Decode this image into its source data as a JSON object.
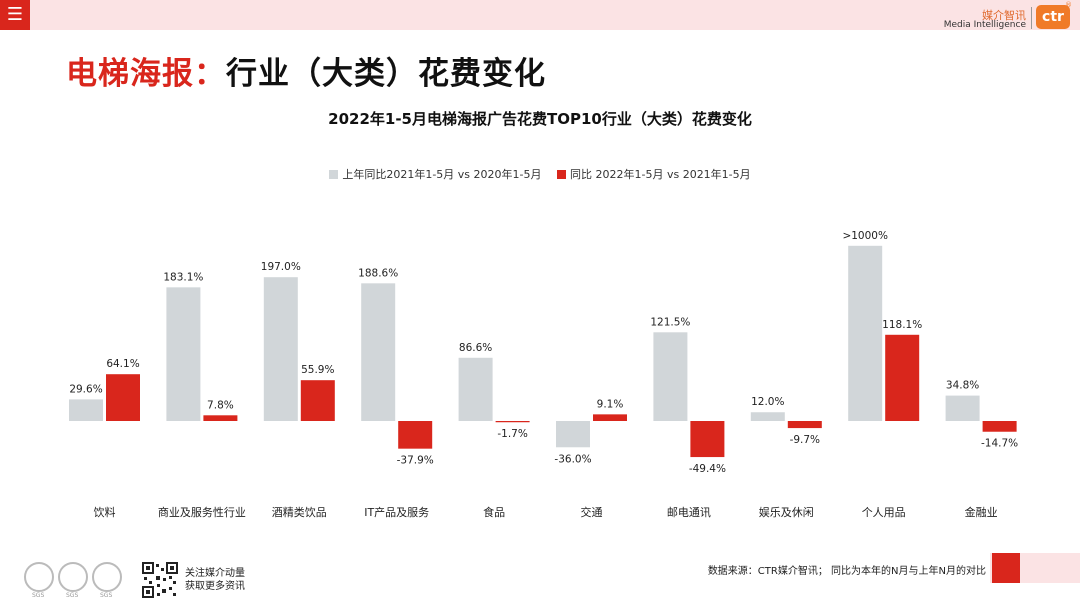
{
  "header": {
    "menu_icon": "hamburger-menu-icon",
    "brand_cn": "媒介智讯",
    "brand_en": "Media Intelligence",
    "brand_logo": "ctr",
    "brand_reg": "®"
  },
  "title": {
    "part_red": "电梯海报：",
    "part_black": "行业（大类）花费变化"
  },
  "colors": {
    "accent_red": "#d9261c",
    "bar_grey": "#d1d6d9",
    "bar_red": "#d9261c",
    "header_bg": "#fbe3e4"
  },
  "chart_data": {
    "type": "bar",
    "title": "2022年1-5月电梯海报广告花费TOP10行业（大类）花费变化",
    "categories": [
      "饮料",
      "商业及服务性行业",
      "酒精类饮品",
      "IT产品及服务",
      "食品",
      "交通",
      "邮电通讯",
      "娱乐及休闲",
      "个人用品",
      "金融业"
    ],
    "series": [
      {
        "name": "上年同比2021年1-5月 vs 2020年1-5月",
        "color": "#d1d6d9",
        "values": [
          29.6,
          183.1,
          197.0,
          188.6,
          86.6,
          -36.0,
          121.5,
          12.0,
          1000,
          34.8
        ],
        "labels": [
          "29.6%",
          "183.1%",
          "197.0%",
          "188.6%",
          "86.6%",
          "-36.0%",
          "121.5%",
          "12.0%",
          ">1000%",
          "34.8%"
        ]
      },
      {
        "name": "同比 2022年1-5月  vs 2021年1-5月",
        "color": "#d9261c",
        "values": [
          64.1,
          7.8,
          55.9,
          -37.9,
          -1.7,
          9.1,
          -49.4,
          -9.7,
          118.1,
          -14.7
        ],
        "labels": [
          "64.1%",
          "7.8%",
          "55.9%",
          "-37.9%",
          "-1.7%",
          "9.1%",
          "-49.4%",
          "-9.7%",
          "118.1%",
          "-14.7%"
        ]
      }
    ],
    "legend_position": "top-center",
    "grid": false
  },
  "footer": {
    "source": "数据来源：CTR媒介智讯；  同比为本年的N月与上年N月的对比",
    "qr_text_line1": "关注媒介动量",
    "qr_text_line2": "获取更多资讯",
    "qr_icon": "qr-code-icon",
    "sgs_icon": "sgs-certification-icon",
    "sgs_label": "SGS"
  }
}
